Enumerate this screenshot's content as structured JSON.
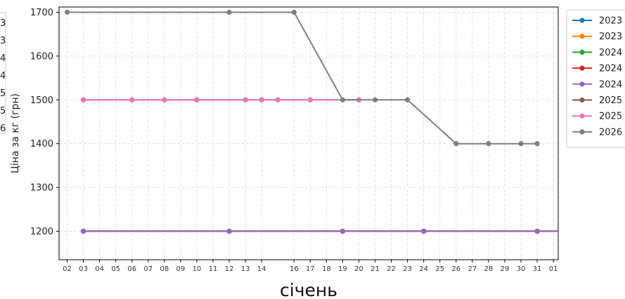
{
  "chart_data": {
    "type": "line",
    "xlabel": "січень",
    "ylabel": "Ціна за кг (грн)",
    "ylim": [
      1135,
      1712
    ],
    "yticks": [
      1200,
      1300,
      1400,
      1500,
      1600,
      1700
    ],
    "x_tick_labels": [
      "02",
      "03",
      "04",
      "05",
      "06",
      "07",
      "08",
      "09",
      "10",
      "11",
      "12",
      "13",
      "14",
      "16",
      "17",
      "18",
      "19",
      "20",
      "21",
      "22",
      "23",
      "24",
      "25",
      "26",
      "27",
      "28",
      "29",
      "30",
      "31",
      "01"
    ],
    "x_tick_positions": [
      0,
      1,
      2,
      3,
      4,
      5,
      6,
      7,
      8,
      9,
      10,
      11,
      12,
      14,
      15,
      16,
      17,
      18,
      19,
      20,
      21,
      22,
      23,
      24,
      25,
      26,
      27,
      28,
      29,
      30
    ],
    "xlim": [
      -0.5,
      30.3
    ],
    "grid": true,
    "legend_position": "outside-right",
    "left_cut_labels": [
      "3",
      "3",
      "4",
      "4",
      "5",
      "5",
      "6"
    ],
    "series": [
      {
        "name": "2023",
        "color": "#1f77b4",
        "x": [
          1,
          10,
          17,
          22,
          29,
          30.3
        ],
        "y": [
          1200,
          1200,
          1200,
          1200,
          1200,
          1200
        ]
      },
      {
        "name": "2023",
        "color": "#ff7f0e",
        "x": [
          1,
          10,
          17,
          22,
          29,
          30.3
        ],
        "y": [
          1200,
          1200,
          1200,
          1200,
          1200,
          1200
        ]
      },
      {
        "name": "2024",
        "color": "#2ca02c",
        "x": [
          1,
          10,
          17,
          22,
          29,
          30.3
        ],
        "y": [
          1200,
          1200,
          1200,
          1200,
          1200,
          1200
        ]
      },
      {
        "name": "2024",
        "color": "#d62728",
        "x": [
          1,
          10,
          17,
          22,
          29,
          30.3
        ],
        "y": [
          1200,
          1200,
          1200,
          1200,
          1200,
          1200
        ]
      },
      {
        "name": "2024",
        "color": "#9467bd",
        "x": [
          1,
          10,
          17,
          22,
          29,
          30.3
        ],
        "y": [
          1200,
          1200,
          1200,
          1200,
          1200,
          1200
        ]
      },
      {
        "name": "2025",
        "color": "#8c564b",
        "x": [
          1,
          4,
          6,
          8,
          11,
          12,
          13,
          15,
          18
        ],
        "y": [
          1500,
          1500,
          1500,
          1500,
          1500,
          1500,
          1500,
          1500,
          1500
        ]
      },
      {
        "name": "2025",
        "color": "#e377c2",
        "x": [
          1,
          4,
          6,
          8,
          11,
          12,
          13,
          15,
          18
        ],
        "y": [
          1500,
          1500,
          1500,
          1500,
          1500,
          1500,
          1500,
          1500,
          1500
        ]
      },
      {
        "name": "2026",
        "color": "#7f7f7f",
        "x": [
          0,
          10,
          14,
          17,
          19,
          21,
          24,
          26,
          28,
          29
        ],
        "y": [
          1700,
          1700,
          1700,
          1500,
          1500,
          1500,
          1400,
          1400,
          1400,
          1400
        ]
      }
    ]
  }
}
